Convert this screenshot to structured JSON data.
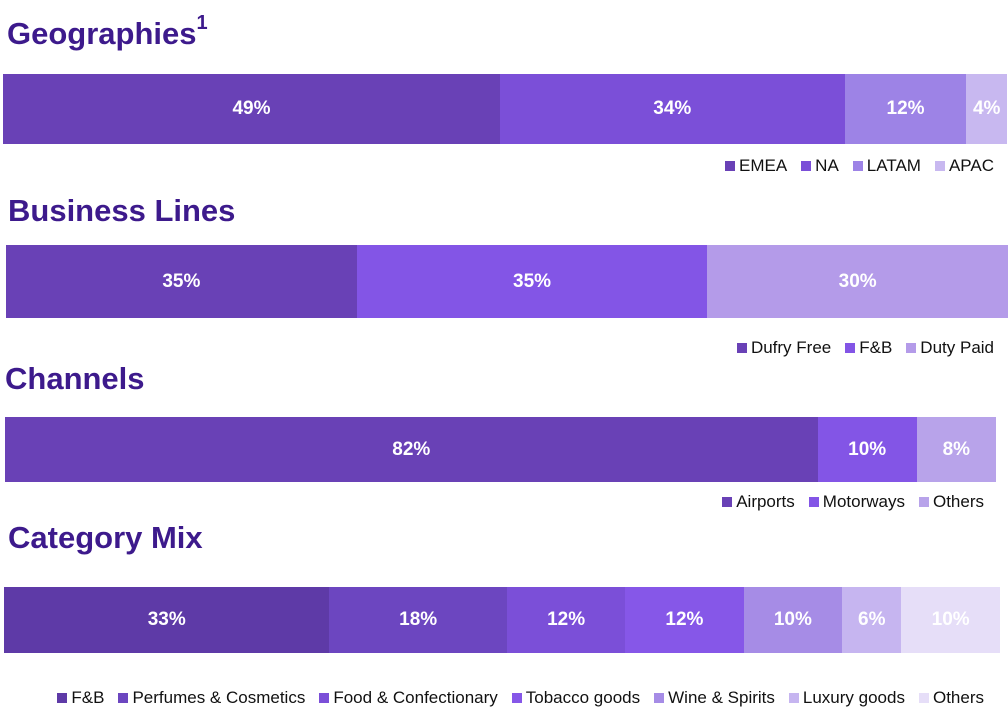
{
  "chart_data": [
    {
      "type": "bar",
      "stacked": true,
      "orientation": "horizontal",
      "title": "Geographies",
      "title_superscript": "1",
      "categories": [
        "EMEA",
        "NA",
        "LATAM",
        "APAC"
      ],
      "values": [
        49,
        34,
        12,
        4
      ],
      "labels": [
        "49%",
        "34%",
        "12%",
        "4%"
      ],
      "colors": [
        "#6941b6",
        "#7b4fd8",
        "#9d83e6",
        "#c8b8f0"
      ],
      "legend_position": "bottom-right"
    },
    {
      "type": "bar",
      "stacked": true,
      "orientation": "horizontal",
      "title": "Business Lines",
      "categories": [
        "Dufry Free",
        "F&B",
        "Duty Paid"
      ],
      "values": [
        35,
        35,
        30
      ],
      "labels": [
        "35%",
        "35%",
        "30%"
      ],
      "colors": [
        "#6941b6",
        "#8355e6",
        "#b49be9"
      ],
      "legend_position": "bottom-right"
    },
    {
      "type": "bar",
      "stacked": true,
      "orientation": "horizontal",
      "title": "Channels",
      "categories": [
        "Airports",
        "Motorways",
        "Others"
      ],
      "values": [
        82,
        10,
        8
      ],
      "labels": [
        "82%",
        "10%",
        "8%"
      ],
      "colors": [
        "#6941b6",
        "#8355e6",
        "#b8a3ea"
      ],
      "legend_position": "bottom-right"
    },
    {
      "type": "bar",
      "stacked": true,
      "orientation": "horizontal",
      "title": "Category Mix",
      "categories": [
        "F&B",
        "Perfumes & Cosmetics",
        "Food & Confectionary",
        "Tobacco goods",
        "Wine & Spirits",
        "Luxury goods",
        "Others"
      ],
      "values": [
        33,
        18,
        12,
        12,
        10,
        6,
        10
      ],
      "labels": [
        "33%",
        "18%",
        "12%",
        "12%",
        "10%",
        "6%",
        "10%"
      ],
      "colors": [
        "#5e3aa7",
        "#6c46c0",
        "#7b4fd8",
        "#8657e8",
        "#a68ce6",
        "#c6b5f0",
        "#e6def8"
      ],
      "legend_position": "bottom-right"
    }
  ]
}
